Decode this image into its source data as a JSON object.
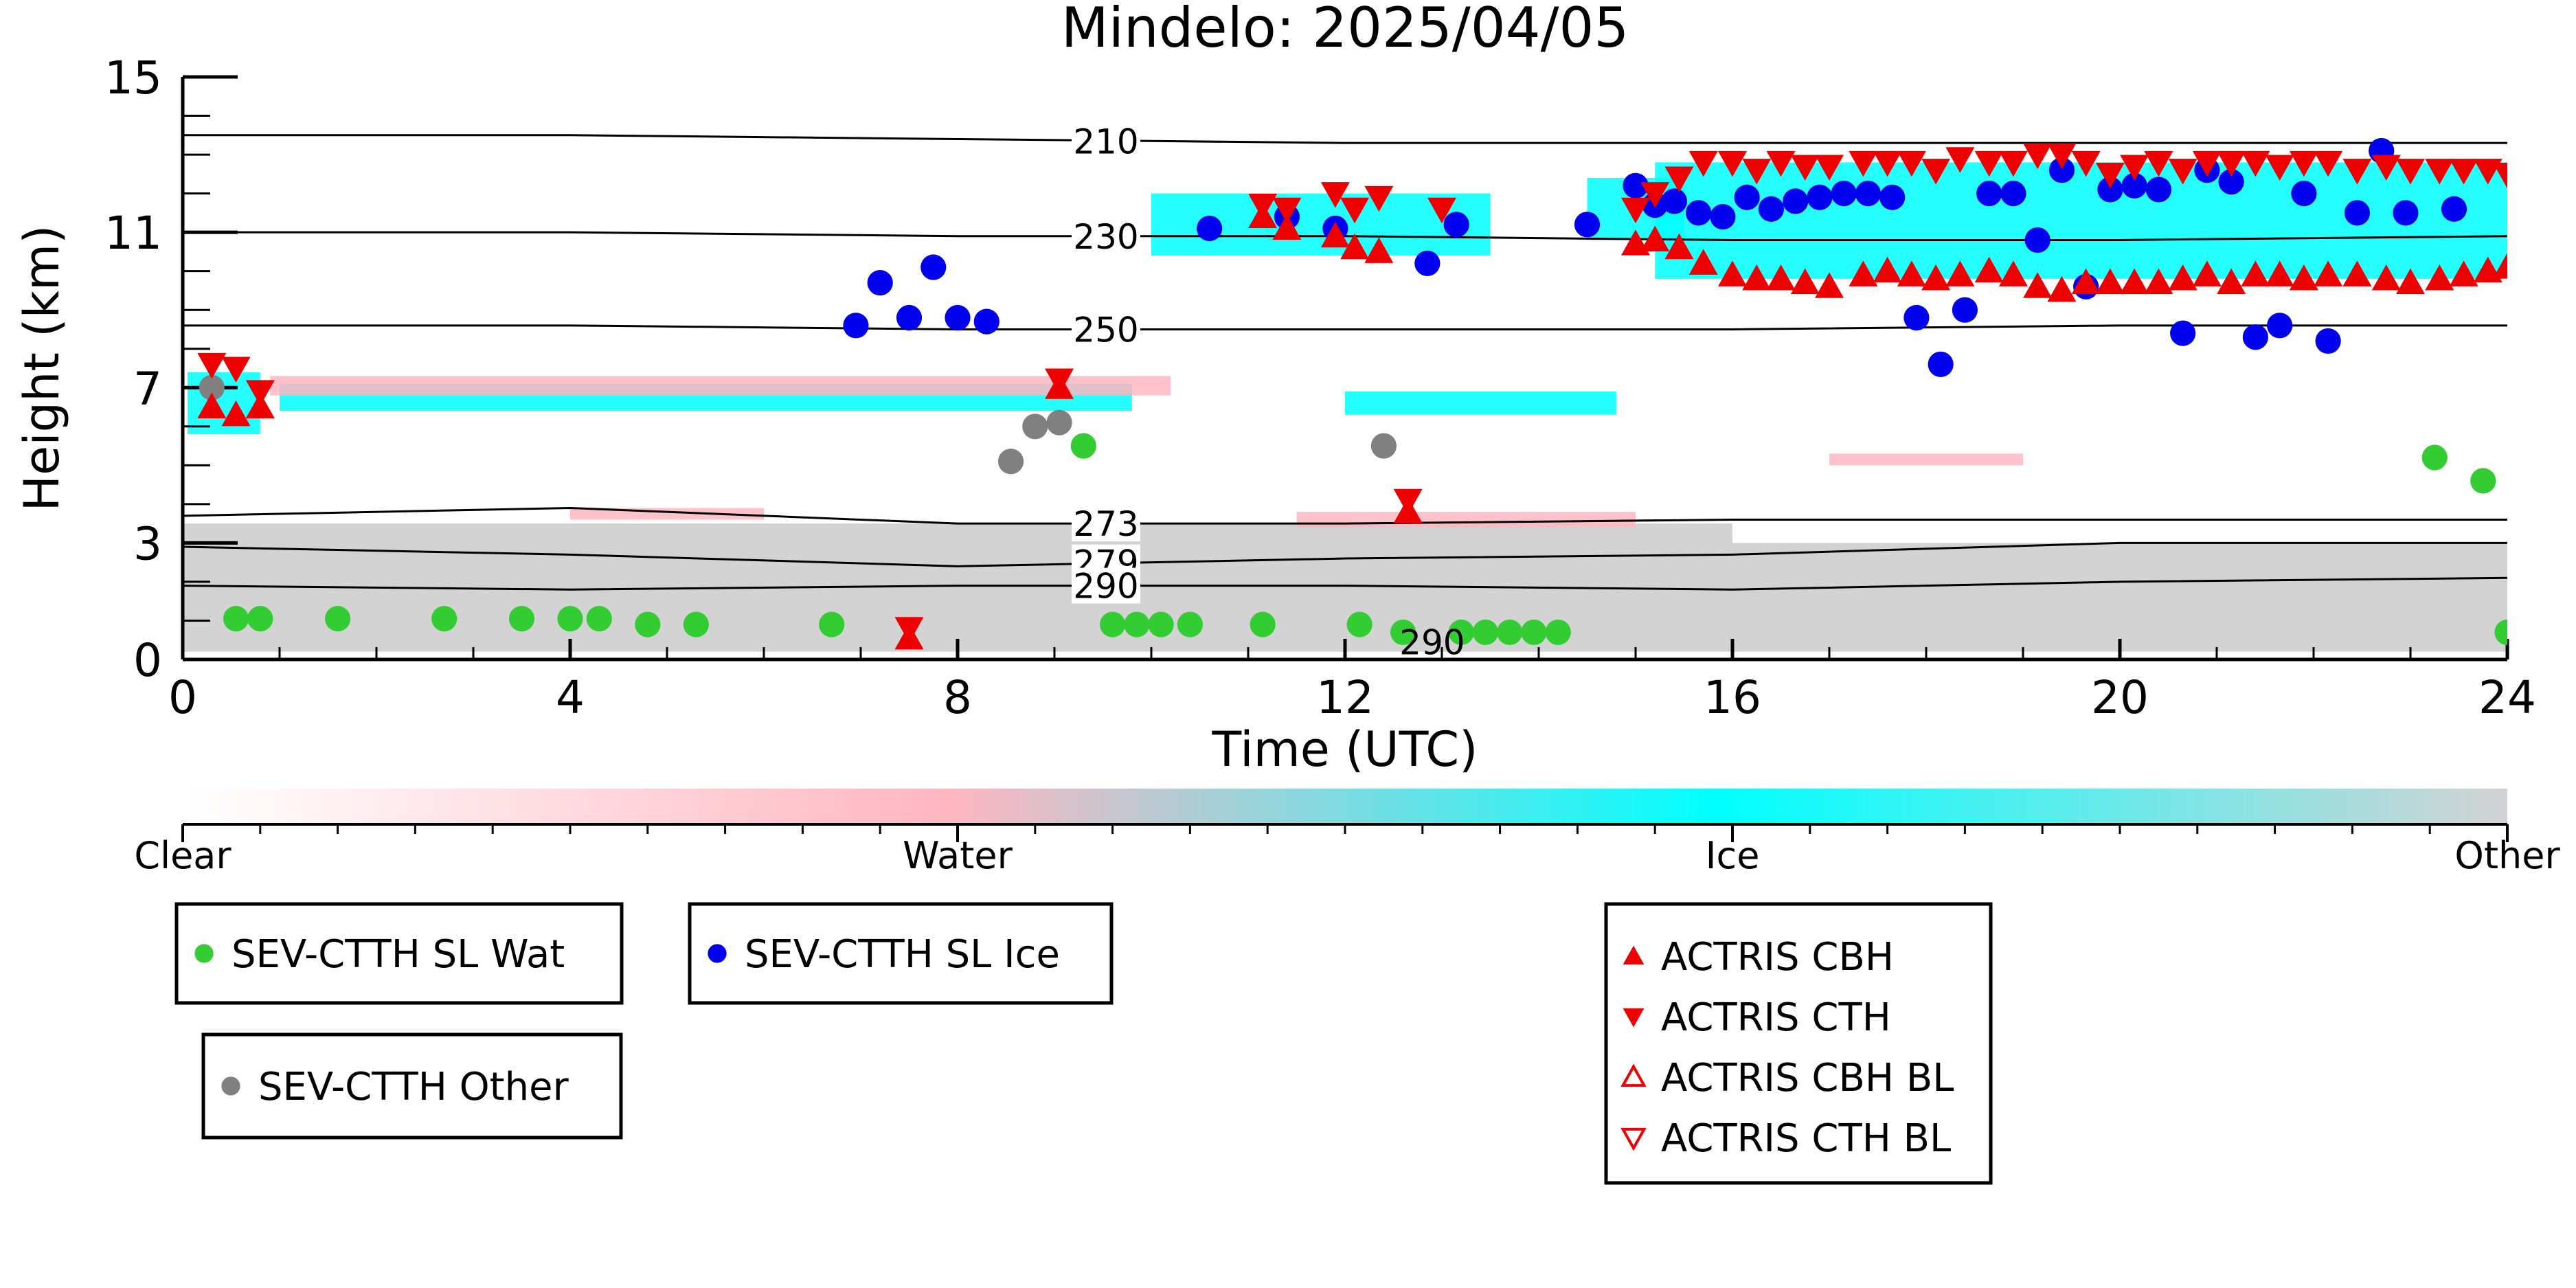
{
  "chart_data": {
    "type": "scatter",
    "title": "Mindelo: 2025/04/05",
    "xlabel": "Time (UTC)",
    "ylabel": "Height (km)",
    "xlim": [
      0,
      24
    ],
    "ylim": [
      0,
      15
    ],
    "xticks": [
      0,
      4,
      8,
      12,
      16,
      20,
      24
    ],
    "yticks": [
      0,
      3,
      7,
      11,
      15
    ],
    "colorbar": {
      "labels": [
        "Clear",
        "Water",
        "Ice",
        "Other"
      ],
      "colors": [
        "#ffffff",
        "#ffb6c1",
        "#00ffff",
        "#d3d3d3"
      ]
    },
    "isotherms": [
      {
        "label": "210",
        "y": [
          13.5,
          13.5,
          13.4,
          13.3,
          13.3,
          13.3,
          13.3
        ]
      },
      {
        "label": "230",
        "y": [
          11.0,
          11.0,
          10.9,
          10.9,
          10.8,
          10.8,
          10.9
        ]
      },
      {
        "label": "250",
        "y": [
          8.6,
          8.6,
          8.5,
          8.5,
          8.5,
          8.6,
          8.6
        ]
      },
      {
        "label": "273",
        "y": [
          3.7,
          3.9,
          3.5,
          3.5,
          3.6,
          3.6,
          3.6
        ]
      },
      {
        "label": "279",
        "y": [
          2.9,
          2.7,
          2.4,
          2.6,
          2.7,
          3.0,
          3.0
        ]
      },
      {
        "label": "290",
        "y": [
          1.9,
          1.8,
          1.9,
          1.9,
          1.8,
          2.0,
          2.1
        ]
      }
    ],
    "cloud_regions": [
      {
        "phase": "Other",
        "x": [
          0,
          16
        ],
        "y": [
          0.2,
          3.5
        ]
      },
      {
        "phase": "Other",
        "x": [
          16,
          24
        ],
        "y": [
          0.2,
          3.0
        ]
      },
      {
        "phase": "Ice",
        "x": [
          15.2,
          24
        ],
        "y": [
          9.8,
          12.8
        ]
      },
      {
        "phase": "Ice",
        "x": [
          10,
          13.5
        ],
        "y": [
          10.4,
          12.0
        ]
      },
      {
        "phase": "Ice",
        "x": [
          0.05,
          0.8
        ],
        "y": [
          5.8,
          7.4
        ]
      },
      {
        "phase": "Ice",
        "x": [
          1,
          9.8
        ],
        "y": [
          6.4,
          7.1
        ]
      },
      {
        "phase": "Water",
        "x": [
          0.9,
          10.2
        ],
        "y": [
          6.8,
          7.3
        ]
      },
      {
        "phase": "Ice",
        "x": [
          12,
          14.8
        ],
        "y": [
          6.3,
          6.9
        ]
      },
      {
        "phase": "Ice",
        "x": [
          14.5,
          15.5
        ],
        "y": [
          10.8,
          12.4
        ]
      },
      {
        "phase": "Water",
        "x": [
          11.5,
          15
        ],
        "y": [
          3.4,
          3.8
        ]
      },
      {
        "phase": "Water",
        "x": [
          17,
          19
        ],
        "y": [
          5.0,
          5.3
        ]
      },
      {
        "phase": "Water",
        "x": [
          4,
          6
        ],
        "y": [
          3.6,
          3.9
        ]
      }
    ],
    "series": [
      {
        "name": "SEV-CTTH SL Wat",
        "color": "#33cc33",
        "marker": "circle",
        "x": [
          0.55,
          0.8,
          1.6,
          2.7,
          3.5,
          4.0,
          4.3,
          4.8,
          5.3,
          6.7,
          9.3,
          9.6,
          9.85,
          10.1,
          10.4,
          11.15,
          12.15,
          12.6,
          13.2,
          13.45,
          13.7,
          13.95,
          14.2,
          23.25,
          23.75,
          24.0
        ],
        "y": [
          1.05,
          1.05,
          1.05,
          1.05,
          1.05,
          1.05,
          1.05,
          0.9,
          0.9,
          0.9,
          5.5,
          0.9,
          0.9,
          0.9,
          0.9,
          0.9,
          0.9,
          0.7,
          0.7,
          0.7,
          0.7,
          0.7,
          0.7,
          5.2,
          4.6,
          0.7
        ]
      },
      {
        "name": "SEV-CTTH SL Ice",
        "color": "#0000ee",
        "marker": "circle",
        "x": [
          6.95,
          7.2,
          7.5,
          7.75,
          8.0,
          8.3,
          10.6,
          11.4,
          11.9,
          12.85,
          13.15,
          14.5,
          15.0,
          15.2,
          15.4,
          15.65,
          15.9,
          16.15,
          16.4,
          16.65,
          16.9,
          17.15,
          17.4,
          17.65,
          17.9,
          18.15,
          18.4,
          18.65,
          18.9,
          19.15,
          19.4,
          19.65,
          19.9,
          20.15,
          20.4,
          20.65,
          20.9,
          21.15,
          21.4,
          21.65,
          21.9,
          22.15,
          22.45,
          22.7,
          22.95,
          23.45
        ],
        "y": [
          8.6,
          9.7,
          8.8,
          10.1,
          8.8,
          8.7,
          11.1,
          11.4,
          11.1,
          10.2,
          11.2,
          11.2,
          12.2,
          11.7,
          11.8,
          11.5,
          11.4,
          11.9,
          11.6,
          11.8,
          11.9,
          12.0,
          12.0,
          11.9,
          8.8,
          7.6,
          9.0,
          12.0,
          12.0,
          10.8,
          12.6,
          9.6,
          12.1,
          12.2,
          12.1,
          8.4,
          12.6,
          12.3,
          8.3,
          8.6,
          12.0,
          8.2,
          11.5,
          13.1,
          11.5,
          11.6
        ],
        "yFixed": true
      },
      {
        "name": "SEV-CTTH Other",
        "color": "#808080",
        "marker": "circle",
        "x": [
          0.3,
          8.55,
          8.8,
          9.05,
          12.4
        ],
        "y": [
          7.0,
          5.1,
          6.0,
          6.1,
          5.5
        ]
      },
      {
        "name": "ACTRIS CBH",
        "color": "#ee0000",
        "marker": "triangle-up",
        "x": [
          0.3,
          0.55,
          0.8,
          7.5,
          9.05,
          11.15,
          11.4,
          11.9,
          12.1,
          12.35,
          12.65,
          15.0,
          15.2,
          15.45,
          15.7,
          16.0,
          16.25,
          16.5,
          16.75,
          17.0,
          17.35,
          17.6,
          17.85,
          18.1,
          18.35,
          18.65,
          18.9,
          19.15,
          19.4,
          19.65,
          19.9,
          20.15,
          20.4,
          20.65,
          20.9,
          21.15,
          21.4,
          21.65,
          21.9,
          22.15,
          22.45,
          22.75,
          23.0,
          23.3,
          23.55,
          23.8,
          24.0
        ],
        "y": [
          6.5,
          6.3,
          6.5,
          0.55,
          7.0,
          11.4,
          11.1,
          10.9,
          10.6,
          10.5,
          3.8,
          10.7,
          10.8,
          10.6,
          10.2,
          9.9,
          9.8,
          9.8,
          9.7,
          9.6,
          9.9,
          10.0,
          9.9,
          9.8,
          9.9,
          10.0,
          9.9,
          9.6,
          9.5,
          9.7,
          9.7,
          9.7,
          9.7,
          9.8,
          9.9,
          9.7,
          9.9,
          9.9,
          9.8,
          9.9,
          9.9,
          9.8,
          9.7,
          9.8,
          9.9,
          10.0,
          10.1
        ]
      },
      {
        "name": "ACTRIS CTH",
        "color": "#ee0000",
        "marker": "triangle-down",
        "x": [
          0.3,
          0.55,
          0.8,
          7.5,
          9.05,
          11.15,
          11.4,
          11.9,
          12.1,
          12.35,
          12.65,
          13.0,
          15.0,
          15.2,
          15.45,
          15.7,
          16.0,
          16.25,
          16.5,
          16.75,
          17.0,
          17.35,
          17.6,
          17.85,
          18.1,
          18.35,
          18.65,
          18.9,
          19.15,
          19.4,
          19.65,
          19.9,
          20.15,
          20.4,
          20.65,
          20.9,
          21.15,
          21.4,
          21.65,
          21.9,
          22.15,
          22.45,
          22.75,
          23.0,
          23.3,
          23.55,
          23.8,
          24.0
        ],
        "y": [
          7.6,
          7.5,
          6.9,
          0.8,
          7.2,
          11.7,
          11.6,
          12.0,
          11.6,
          11.9,
          4.1,
          11.6,
          11.6,
          12.0,
          12.4,
          12.8,
          12.8,
          12.6,
          12.8,
          12.7,
          12.7,
          12.8,
          12.8,
          12.8,
          12.6,
          12.9,
          12.8,
          12.8,
          13.0,
          13.0,
          12.8,
          12.5,
          12.7,
          12.8,
          12.6,
          12.8,
          12.8,
          12.8,
          12.7,
          12.8,
          12.8,
          12.6,
          12.7,
          12.6,
          12.6,
          12.6,
          12.6,
          12.5
        ]
      },
      {
        "name": "ACTRIS CBH BL",
        "color": "#ee0000",
        "marker": "triangle-up-open",
        "x": [],
        "y": []
      },
      {
        "name": "ACTRIS CTH BL",
        "color": "#ee0000",
        "marker": "triangle-down-open",
        "x": [],
        "y": []
      }
    ],
    "extra_labels": [
      {
        "text": "290",
        "x": 12.9,
        "y": 0.45
      }
    ],
    "legend_placement": "bottom"
  }
}
